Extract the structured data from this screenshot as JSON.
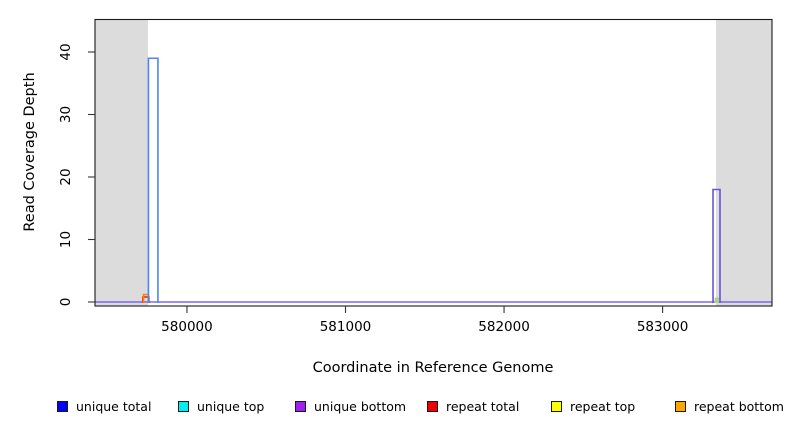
{
  "figure": {
    "xlabel": "Coordinate in Reference Genome",
    "ylabel": "Read Coverage Depth"
  },
  "chart_data": {
    "type": "line",
    "title": "",
    "xlabel": "Coordinate in Reference Genome",
    "ylabel": "Read Coverage Depth",
    "xlim": [
      579420,
      583690
    ],
    "ylim": [
      0,
      44
    ],
    "x_ticks": [
      580000,
      581000,
      582000,
      583000
    ],
    "y_ticks": [
      0,
      10,
      20,
      30,
      40
    ],
    "grid": false,
    "legend_position": "bottom",
    "background": "#FFFFFF",
    "masked_region_color": "#DCDCDC",
    "masked_regions": [
      {
        "label": "repeat-masked-left",
        "x0": 579420,
        "x1": 579754
      },
      {
        "label": "repeat-masked-right",
        "x0": 583337,
        "x1": 583690
      }
    ],
    "baseline": {
      "y": 0,
      "color": "#7B68EE"
    },
    "features": [
      {
        "series": "repeat total",
        "x0": 579722,
        "x1": 579760,
        "peak": 0.8,
        "color": "#DC2020",
        "fill": false
      },
      {
        "series": "repeat bottom",
        "x0": 579726,
        "x1": 579757,
        "peak": 1.2,
        "color": "#FF8000",
        "fill": false
      },
      {
        "series": "unique total + unique top",
        "x0": 579757,
        "x1": 579817,
        "peak": 39,
        "color": "#4C86F0",
        "fill": false
      },
      {
        "series": "unique top (small)",
        "x0": 583333,
        "x1": 583352,
        "peak": 0.6,
        "color": "#A6D785",
        "fill": true
      },
      {
        "series": "unique bottom",
        "x0": 583318,
        "x1": 583362,
        "peak": 18,
        "color": "#6A52DC",
        "fill": false
      }
    ],
    "legend": [
      {
        "label": "unique total",
        "color": "#0000FF"
      },
      {
        "label": "unique top",
        "color": "#00EEEE"
      },
      {
        "label": "unique bottom",
        "color": "#A020F0"
      },
      {
        "label": "repeat total",
        "color": "#EE0000"
      },
      {
        "label": "repeat top",
        "color": "#FFFF00"
      },
      {
        "label": "repeat bottom",
        "color": "#FFA500"
      }
    ]
  }
}
